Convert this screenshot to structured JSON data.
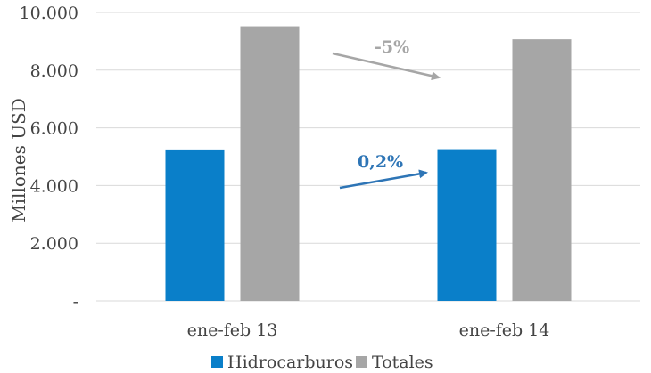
{
  "chart_data": {
    "type": "bar",
    "categories": [
      "ene-feb 13",
      "ene-feb 14"
    ],
    "series": [
      {
        "name": "Hidrocarburos",
        "values": [
          5250,
          5260
        ],
        "color": "#0a7fc9"
      },
      {
        "name": "Totales",
        "values": [
          9520,
          9070
        ],
        "color": "#a6a6a6"
      }
    ],
    "ylabel": "Millones USD",
    "ylim": [
      0,
      10000
    ],
    "yticks": [
      0,
      2000,
      4000,
      6000,
      8000,
      10000
    ],
    "ytick_labels": [
      "-",
      "2.000",
      "4.000",
      "6.000",
      "8.000",
      "10.000"
    ],
    "grid": true,
    "legend": "bottom",
    "annotations": [
      {
        "text": "-5%",
        "series": "Totales",
        "color": "#a6a6a6"
      },
      {
        "text": "0,2%",
        "series": "Hidrocarburos",
        "color": "#2e75b6"
      }
    ]
  }
}
